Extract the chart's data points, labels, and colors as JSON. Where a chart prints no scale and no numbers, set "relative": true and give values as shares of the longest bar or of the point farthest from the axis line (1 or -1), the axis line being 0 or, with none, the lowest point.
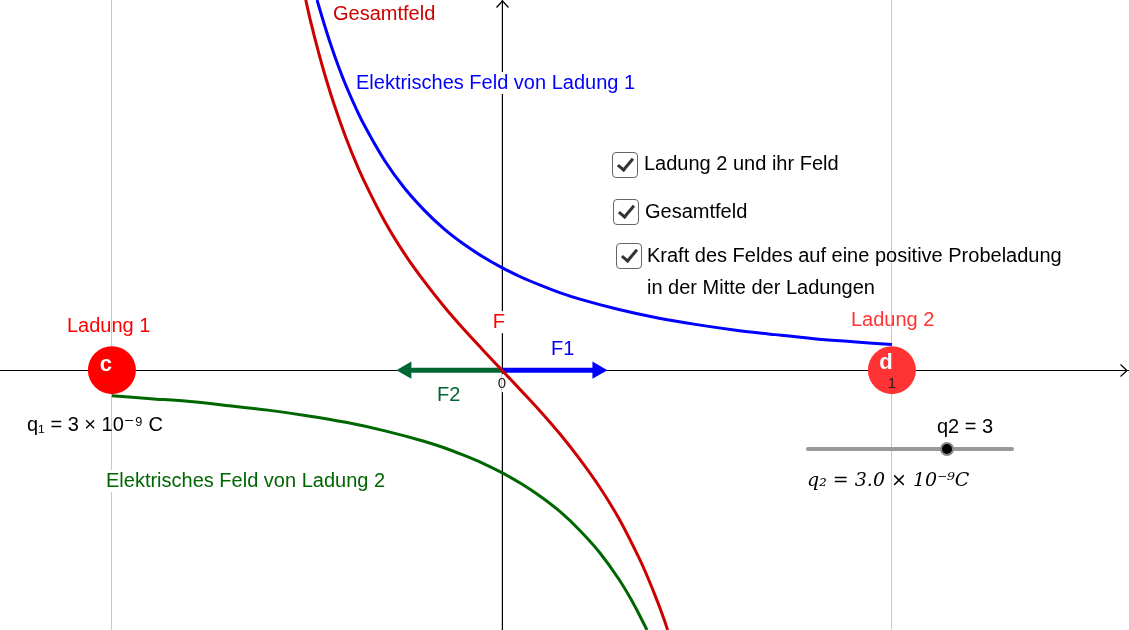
{
  "chart_data": {
    "type": "line",
    "relative": true,
    "xlim": [
      -1.287,
      1.608
    ],
    "xticks": [
      {
        "value": -1,
        "label": null
      },
      0,
      1
    ],
    "grid": "x",
    "series": [
      {
        "name": "Gesamtfeld",
        "color": "#cc0000",
        "x": [
          -0.503,
          -0.49,
          -0.47,
          -0.45,
          -0.43,
          -0.4,
          -0.37,
          -0.35,
          -0.3,
          -0.25,
          -0.2,
          -0.15,
          -0.1,
          -0.05,
          0,
          0.05,
          0.1,
          0.15,
          0.2,
          0.25,
          0.3,
          0.35,
          0.37,
          0.4,
          0.415,
          0.425
        ],
        "values": [
          1.0,
          0.94,
          0.858,
          0.784,
          0.717,
          0.628,
          0.55,
          0.504,
          0.401,
          0.315,
          0.241,
          0.174,
          0.113,
          0.056,
          0,
          -0.056,
          -0.113,
          -0.174,
          -0.241,
          -0.315,
          -0.401,
          -0.504,
          -0.55,
          -0.628,
          -0.671,
          -0.702
        ]
      },
      {
        "name": "Elektrisches Feld von Ladung 1",
        "color": "#0000ff",
        "x": [
          -0.474,
          -0.46,
          -0.44,
          -0.42,
          -0.4,
          -0.37,
          -0.35,
          -0.3,
          -0.25,
          -0.2,
          -0.15,
          -0.1,
          -0.05,
          0,
          0.05,
          0.1,
          0.15,
          0.2,
          0.3,
          0.4,
          0.5,
          0.6,
          0.7,
          0.8,
          0.9,
          1
        ],
        "values": [
          1.0,
          0.95,
          0.883,
          0.823,
          0.769,
          0.698,
          0.656,
          0.565,
          0.492,
          0.433,
          0.383,
          0.342,
          0.307,
          0.277,
          0.251,
          0.229,
          0.209,
          0.192,
          0.164,
          0.141,
          0.123,
          0.108,
          0.096,
          0.085,
          0.077,
          0.069
        ]
      },
      {
        "name": "Elektrisches Feld von Ladung 2",
        "color": "#006600",
        "x": [
          -1,
          -0.9,
          -0.8,
          -0.7,
          -0.6,
          -0.5,
          -0.4,
          -0.3,
          -0.2,
          -0.15,
          -0.1,
          -0.05,
          0,
          0.05,
          0.1,
          0.15,
          0.2,
          0.25,
          0.3,
          0.33,
          0.35,
          0.372
        ],
        "values": [
          -0.069,
          -0.077,
          -0.085,
          -0.096,
          -0.108,
          -0.123,
          -0.141,
          -0.164,
          -0.192,
          -0.209,
          -0.229,
          -0.251,
          -0.277,
          -0.307,
          -0.342,
          -0.383,
          -0.433,
          -0.492,
          -0.565,
          -0.617,
          -0.656,
          -0.702
        ]
      },
      {
        "name": "F1",
        "color": "#0000ff",
        "marker": "triangle",
        "x": [
          0,
          0.245
        ],
        "values": [
          0,
          0
        ]
      },
      {
        "name": "F2",
        "color": "#006633",
        "marker": "triangle",
        "x": [
          0,
          -0.245
        ],
        "values": [
          0,
          0
        ]
      },
      {
        "name": "Ladung 1",
        "type": "scatter",
        "marker": "circle",
        "color": "#ff0000",
        "x": [
          -1
        ],
        "values": [
          0
        ]
      },
      {
        "name": "Ladung 2",
        "type": "scatter",
        "marker": "circle",
        "color": "#ff3333",
        "x": [
          1
        ],
        "values": [
          0
        ]
      }
    ],
    "annotations": [
      {
        "text": "c",
        "x": -1,
        "y": 0
      },
      {
        "text": "d",
        "x": 1,
        "y": 0
      },
      {
        "text": "F",
        "x": 0,
        "y": 0
      },
      "q₁ = 3 × 10⁻⁹ C",
      "Ladung 2 und ihr Feld",
      "Gesamtfeld",
      "Kraft des Feldes auf eine positive Probeladung in der Mitte der Ladungen",
      "q2 = 3",
      "q₂ = 3.0 × 10⁻⁹C"
    ]
  }
}
